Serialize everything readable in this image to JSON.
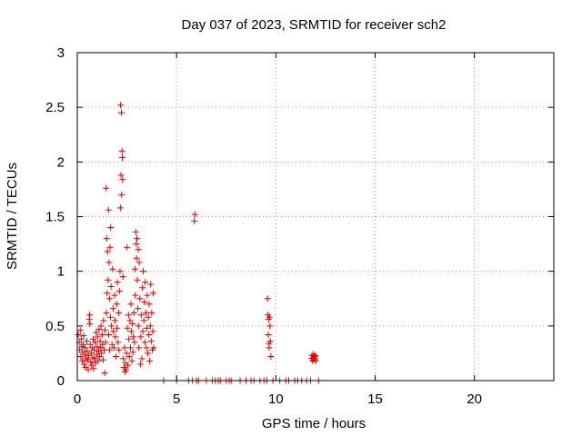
{
  "chart_data": {
    "type": "scatter",
    "title": "Day 037 of 2023, SRMTID for receiver sch2",
    "xlabel": "GPS time / hours",
    "ylabel": "SRMTID / TECUs",
    "xlim": [
      0,
      24
    ],
    "ylim": [
      0,
      3
    ],
    "xticks": [
      0,
      5,
      10,
      15,
      20
    ],
    "xtick_labels": [
      "0",
      "5",
      "10",
      "15",
      "20"
    ],
    "yticks": [
      0,
      0.5,
      1,
      1.5,
      2,
      2.5,
      3
    ],
    "ytick_labels": [
      "0",
      "0.5",
      "1",
      "1.5",
      "2",
      "2.5",
      "3"
    ],
    "grid": true,
    "marker": "+",
    "color": "#e00000",
    "series": [
      {
        "name": "sch2",
        "points": [
          [
            0.05,
            0.42
          ],
          [
            0.1,
            0.35
          ],
          [
            0.12,
            0.28
          ],
          [
            0.15,
            0.46
          ],
          [
            0.18,
            0.22
          ],
          [
            0.2,
            0.38
          ],
          [
            0.22,
            0.31
          ],
          [
            0.25,
            0.18
          ],
          [
            0.27,
            0.26
          ],
          [
            0.3,
            0.33
          ],
          [
            0.32,
            0.41
          ],
          [
            0.35,
            0.15
          ],
          [
            0.38,
            0.24
          ],
          [
            0.4,
            0.3
          ],
          [
            0.42,
            0.12
          ],
          [
            0.45,
            0.2
          ],
          [
            0.48,
            0.36
          ],
          [
            0.5,
            0.27
          ],
          [
            0.52,
            0.19
          ],
          [
            0.55,
            0.1
          ],
          [
            0.58,
            0.23
          ],
          [
            0.6,
            0.56
          ],
          [
            0.62,
            0.6
          ],
          [
            0.63,
            0.52
          ],
          [
            0.65,
            0.33
          ],
          [
            0.68,
            0.17
          ],
          [
            0.7,
            0.25
          ],
          [
            0.72,
            0.14
          ],
          [
            0.75,
            0.3
          ],
          [
            0.78,
            0.21
          ],
          [
            0.8,
            0.38
          ],
          [
            0.82,
            0.11
          ],
          [
            0.85,
            0.28
          ],
          [
            0.88,
            0.2
          ],
          [
            0.9,
            0.35
          ],
          [
            0.92,
            0.16
          ],
          [
            0.95,
            0.44
          ],
          [
            0.98,
            0.24
          ],
          [
            1.0,
            0.31
          ],
          [
            1.02,
            0.4
          ],
          [
            1.05,
            0.18
          ],
          [
            1.08,
            0.27
          ],
          [
            1.1,
            0.47
          ],
          [
            1.12,
            0.22
          ],
          [
            1.15,
            0.36
          ],
          [
            1.18,
            0.3
          ],
          [
            1.2,
            0.5
          ],
          [
            1.22,
            0.25
          ],
          [
            1.25,
            0.42
          ],
          [
            1.28,
            0.33
          ],
          [
            1.3,
            0.19
          ],
          [
            1.32,
            0.55
          ],
          [
            1.35,
            0.28
          ],
          [
            1.38,
            0.07
          ],
          [
            1.4,
            0.46
          ],
          [
            1.42,
            0.35
          ],
          [
            1.45,
            1.76
          ],
          [
            1.47,
            0.62
          ],
          [
            1.48,
            1.3
          ],
          [
            1.5,
            0.8
          ],
          [
            1.52,
            1.18
          ],
          [
            1.55,
            0.92
          ],
          [
            1.57,
            1.56
          ],
          [
            1.58,
            0.42
          ],
          [
            1.6,
            1.08
          ],
          [
            1.62,
            0.75
          ],
          [
            1.63,
            0.28
          ],
          [
            1.65,
            1.22
          ],
          [
            1.67,
            0.58
          ],
          [
            1.68,
            1.4
          ],
          [
            1.7,
            0.86
          ],
          [
            1.72,
            0.5
          ],
          [
            1.75,
            0.33
          ],
          [
            1.78,
            1.02
          ],
          [
            1.8,
            0.66
          ],
          [
            1.82,
            0.45
          ],
          [
            1.85,
            0.3
          ],
          [
            1.88,
            0.78
          ],
          [
            1.9,
            0.55
          ],
          [
            1.92,
            0.4
          ],
          [
            1.95,
            0.22
          ],
          [
            1.98,
            0.7
          ],
          [
            2.0,
            0.48
          ],
          [
            2.02,
            0.9
          ],
          [
            2.05,
            0.35
          ],
          [
            2.08,
            0.62
          ],
          [
            2.1,
            0.28
          ],
          [
            2.12,
            0.82
          ],
          [
            2.15,
            1.0
          ],
          [
            2.17,
            1.58
          ],
          [
            2.18,
            2.52
          ],
          [
            2.2,
            1.88
          ],
          [
            2.22,
            2.45
          ],
          [
            2.23,
            1.7
          ],
          [
            2.25,
            2.1
          ],
          [
            2.27,
            2.04
          ],
          [
            2.28,
            1.84
          ],
          [
            2.3,
            0.95
          ],
          [
            2.32,
            0.2
          ],
          [
            2.35,
            0.12
          ],
          [
            2.38,
            0.3
          ],
          [
            2.4,
            0.08
          ],
          [
            2.42,
            0.16
          ],
          [
            2.45,
            0.1
          ],
          [
            2.48,
            0.25
          ],
          [
            2.5,
            1.22
          ],
          [
            2.52,
            0.48
          ],
          [
            2.55,
            0.14
          ],
          [
            2.58,
            0.6
          ],
          [
            2.6,
            0.38
          ],
          [
            2.62,
            0.22
          ],
          [
            2.65,
            0.55
          ],
          [
            2.68,
            0.3
          ],
          [
            2.7,
            0.7
          ],
          [
            2.72,
            0.45
          ],
          [
            2.75,
            0.18
          ],
          [
            2.78,
            0.52
          ],
          [
            2.8,
            0.26
          ],
          [
            2.82,
            0.4
          ],
          [
            2.85,
            0.62
          ],
          [
            2.88,
            0.35
          ],
          [
            2.9,
            1.02
          ],
          [
            2.92,
            0.78
          ],
          [
            2.95,
            1.36
          ],
          [
            2.97,
            1.25
          ],
          [
            2.98,
            1.12
          ],
          [
            3.0,
            1.3
          ],
          [
            3.02,
            0.92
          ],
          [
            3.05,
            0.66
          ],
          [
            3.07,
            1.2
          ],
          [
            3.08,
            0.5
          ],
          [
            3.1,
            0.3
          ],
          [
            3.12,
            1.08
          ],
          [
            3.15,
            0.75
          ],
          [
            3.18,
            0.15
          ],
          [
            3.2,
            0.4
          ],
          [
            3.22,
            0.6
          ],
          [
            3.25,
            0.2
          ],
          [
            3.28,
            0.85
          ],
          [
            3.3,
            0.45
          ],
          [
            3.32,
            1.0
          ],
          [
            3.35,
            0.55
          ],
          [
            3.38,
            0.72
          ],
          [
            3.4,
            0.35
          ],
          [
            3.42,
            0.9
          ],
          [
            3.45,
            0.62
          ],
          [
            3.48,
            0.3
          ],
          [
            3.5,
            0.48
          ],
          [
            3.52,
            0.78
          ],
          [
            3.55,
            0.25
          ],
          [
            3.58,
            0.58
          ],
          [
            3.6,
            0.42
          ],
          [
            3.62,
            0.7
          ],
          [
            3.65,
            0.18
          ],
          [
            3.68,
            0.5
          ],
          [
            3.7,
            0.88
          ],
          [
            3.72,
            0.36
          ],
          [
            3.75,
            0.62
          ],
          [
            3.78,
            0.28
          ],
          [
            3.8,
            0.45
          ],
          [
            3.82,
            0.8
          ],
          [
            3.85,
            0.3
          ],
          [
            4.35,
            0.0
          ],
          [
            5.0,
            0.0
          ],
          [
            5.6,
            0.0
          ],
          [
            5.8,
            0.0
          ],
          [
            5.9,
            1.46
          ],
          [
            5.92,
            1.52
          ],
          [
            6.0,
            0.0
          ],
          [
            6.1,
            0.0
          ],
          [
            6.5,
            0.0
          ],
          [
            6.8,
            0.0
          ],
          [
            6.95,
            0.0
          ],
          [
            7.1,
            0.0
          ],
          [
            7.2,
            0.0
          ],
          [
            7.5,
            0.0
          ],
          [
            7.65,
            0.0
          ],
          [
            7.75,
            0.0
          ],
          [
            8.2,
            0.0
          ],
          [
            8.5,
            0.0
          ],
          [
            8.75,
            0.0
          ],
          [
            8.9,
            0.0
          ],
          [
            9.2,
            0.0
          ],
          [
            9.4,
            0.0
          ],
          [
            9.55,
            0.0
          ],
          [
            9.58,
            0.75
          ],
          [
            9.6,
            0.6
          ],
          [
            9.62,
            0.42
          ],
          [
            9.63,
            0.56
          ],
          [
            9.65,
            0.34
          ],
          [
            9.66,
            0.3
          ],
          [
            9.68,
            0.58
          ],
          [
            9.7,
            0.5
          ],
          [
            9.72,
            0.36
          ],
          [
            9.75,
            0.22
          ],
          [
            9.85,
            0.0
          ],
          [
            10.2,
            0.0
          ],
          [
            10.5,
            0.0
          ],
          [
            10.65,
            0.0
          ],
          [
            10.95,
            0.0
          ],
          [
            11.1,
            0.0
          ],
          [
            11.3,
            0.0
          ],
          [
            11.55,
            0.0
          ],
          [
            11.75,
            0.0
          ],
          [
            11.8,
            0.2
          ],
          [
            11.82,
            0.23
          ],
          [
            11.85,
            0.18
          ],
          [
            11.88,
            0.21
          ],
          [
            11.9,
            0.24
          ],
          [
            11.92,
            0.19
          ],
          [
            11.95,
            0.22
          ],
          [
            11.98,
            0.2
          ],
          [
            12.0,
            0.23
          ],
          [
            12.02,
            0.18
          ],
          [
            12.15,
            0.0
          ]
        ]
      }
    ]
  }
}
